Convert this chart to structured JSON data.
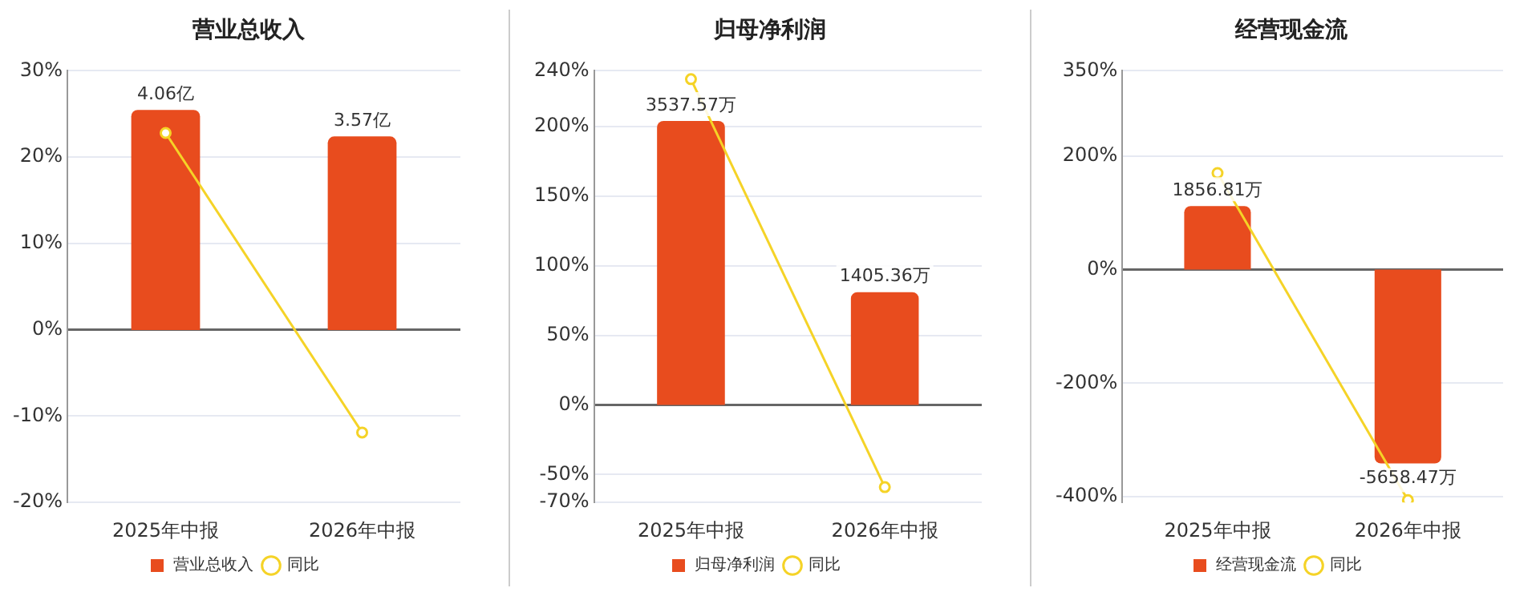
{
  "chart_data": [
    {
      "type": "bar",
      "title": "营业总收入",
      "categories": [
        "2025年中报",
        "2026年中报"
      ],
      "ylim": [
        -20,
        30
      ],
      "yticks": [
        {
          "value": -20,
          "label": "-20%"
        },
        {
          "value": -10,
          "label": "-10%"
        },
        {
          "value": 0,
          "label": "0%"
        },
        {
          "value": 10,
          "label": "10%"
        },
        {
          "value": 20,
          "label": "20%"
        },
        {
          "value": 30,
          "label": "30%"
        }
      ],
      "y2lim": [
        -3.18,
        4.78
      ],
      "grid": "y",
      "legend": "bottom",
      "series": [
        {
          "name": "营业总收入",
          "axis": "y2",
          "color": "#e84c1e",
          "values": [
            4.06,
            3.57
          ],
          "value_labels": [
            "4.06亿",
            "3.57亿"
          ]
        },
        {
          "name": "同比",
          "type": "line",
          "color": "#f5d327",
          "marker": "circle",
          "values": [
            22.8,
            -11.9
          ]
        }
      ]
    },
    {
      "type": "bar",
      "title": "归母净利润",
      "categories": [
        "2025年中报",
        "2026年中报"
      ],
      "ylim": [
        -70,
        240
      ],
      "yticks": [
        {
          "value": -70,
          "label": "-70%"
        },
        {
          "value": -50,
          "label": "-50%"
        },
        {
          "value": 0,
          "label": "0%"
        },
        {
          "value": 50,
          "label": "50%"
        },
        {
          "value": 100,
          "label": "100%"
        },
        {
          "value": 150,
          "label": "150%"
        },
        {
          "value": 200,
          "label": "200%"
        },
        {
          "value": 240,
          "label": "240%"
        }
      ],
      "y2lim": [
        -1214,
        4162
      ],
      "grid": "y",
      "legend": "bottom",
      "series": [
        {
          "name": "归母净利润",
          "axis": "y2",
          "color": "#e84c1e",
          "values": [
            3537.57,
            1405.36
          ],
          "value_labels": [
            "3537.57万",
            "1405.36万"
          ]
        },
        {
          "name": "同比",
          "type": "line",
          "color": "#f5d327",
          "marker": "circle",
          "values": [
            234,
            -59
          ]
        }
      ]
    },
    {
      "type": "bar",
      "title": "经营现金流",
      "categories": [
        "2025年中报",
        "2026年中报"
      ],
      "ylim": [
        -410,
        350
      ],
      "yticks": [
        {
          "value": -400,
          "label": "-400%"
        },
        {
          "value": -200,
          "label": "-200%"
        },
        {
          "value": 0,
          "label": "0%"
        },
        {
          "value": 200,
          "label": "200%"
        },
        {
          "value": 350,
          "label": "350%"
        }
      ],
      "y2lim": [
        -6798,
        5803
      ],
      "grid": "y",
      "legend": "bottom",
      "series": [
        {
          "name": "经营现金流",
          "axis": "y2",
          "color": "#e84c1e",
          "values": [
            1856.81,
            -5658.47
          ],
          "value_labels": [
            "1856.81万",
            "-5658.47万"
          ]
        },
        {
          "name": "同比",
          "type": "line",
          "color": "#f5d327",
          "marker": "circle",
          "values": [
            170,
            -406
          ]
        }
      ]
    }
  ]
}
